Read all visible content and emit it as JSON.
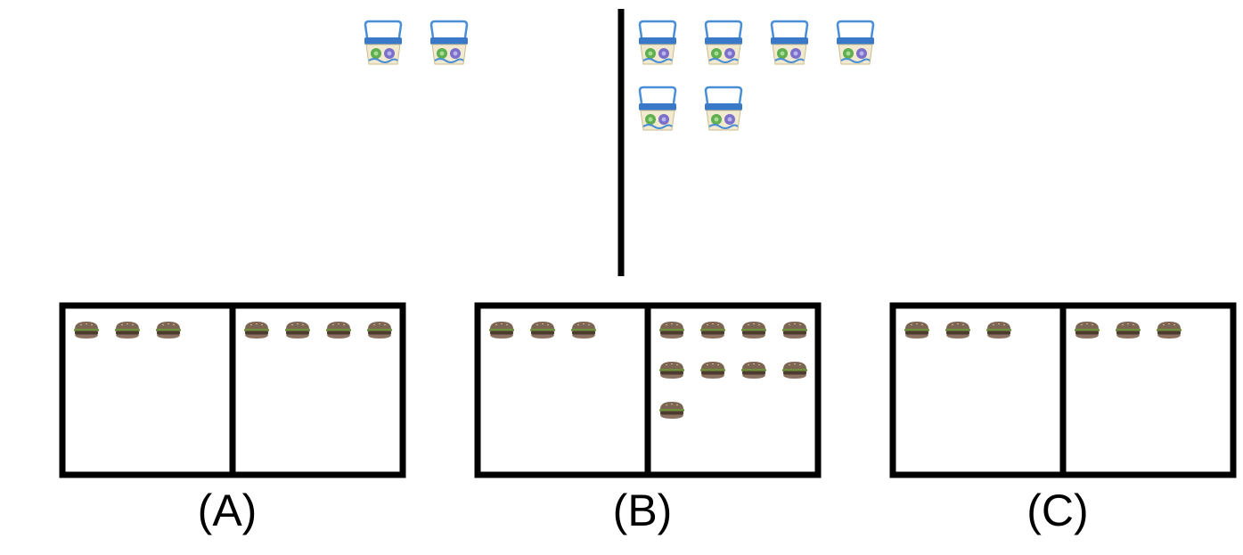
{
  "problem": {
    "left_group": {
      "item": "basket",
      "count": 2
    },
    "right_group": {
      "item": "basket",
      "count": 6
    }
  },
  "options": [
    {
      "label": "(A)",
      "item": "burger",
      "left_count": 3,
      "right_count": 4
    },
    {
      "label": "(B)",
      "item": "burger",
      "left_count": 3,
      "right_count": 9
    },
    {
      "label": "(C)",
      "item": "burger",
      "left_count": 3,
      "right_count": 3
    }
  ],
  "icons": {
    "basket": "basket-icon",
    "burger": "burger-icon"
  },
  "colors": {
    "divider": "#000000",
    "box_border": "#000000",
    "basket_handle": "#4a8fd6",
    "basket_rim": "#3a78c8",
    "basket_body": "#f2ead0",
    "basket_dot_green": "#5fae4f",
    "basket_dot_purple": "#7a6fc9",
    "burger_bun": "#7d6553",
    "burger_patty": "#4e3b30"
  }
}
